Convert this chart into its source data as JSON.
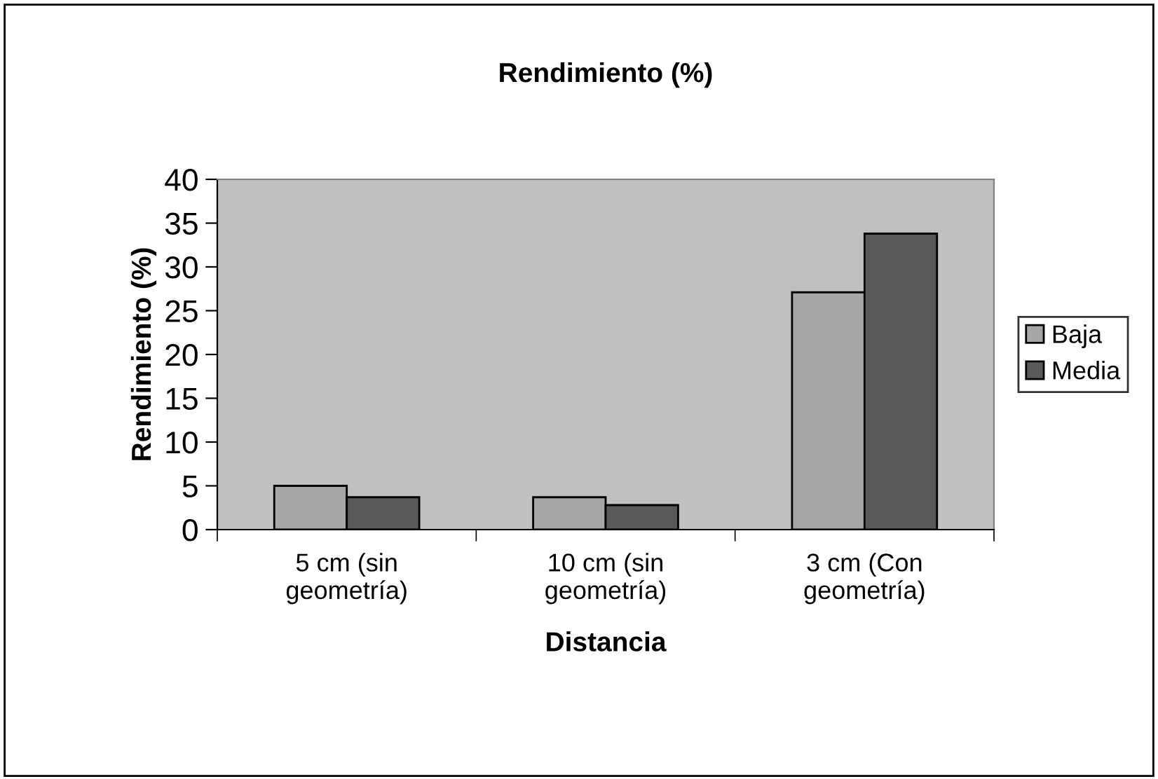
{
  "chart_data": {
    "type": "bar",
    "title": "Rendimiento (%)",
    "xlabel": "Distancia",
    "ylabel": "Rendimiento (%)",
    "categories": [
      "5 cm (sin\ngeometría)",
      "10 cm (sin\ngeometría)",
      "3 cm (Con\ngeometría)"
    ],
    "series": [
      {
        "name": "Baja",
        "color": "#a6a6a6",
        "values": [
          5.0,
          3.7,
          27.1
        ]
      },
      {
        "name": "Media",
        "color": "#595959",
        "values": [
          3.7,
          2.8,
          33.8
        ]
      }
    ],
    "ylim": [
      0,
      40
    ],
    "yticks": [
      0,
      5,
      10,
      15,
      20,
      25,
      30,
      35,
      40
    ],
    "grid": false,
    "legend": "right"
  }
}
